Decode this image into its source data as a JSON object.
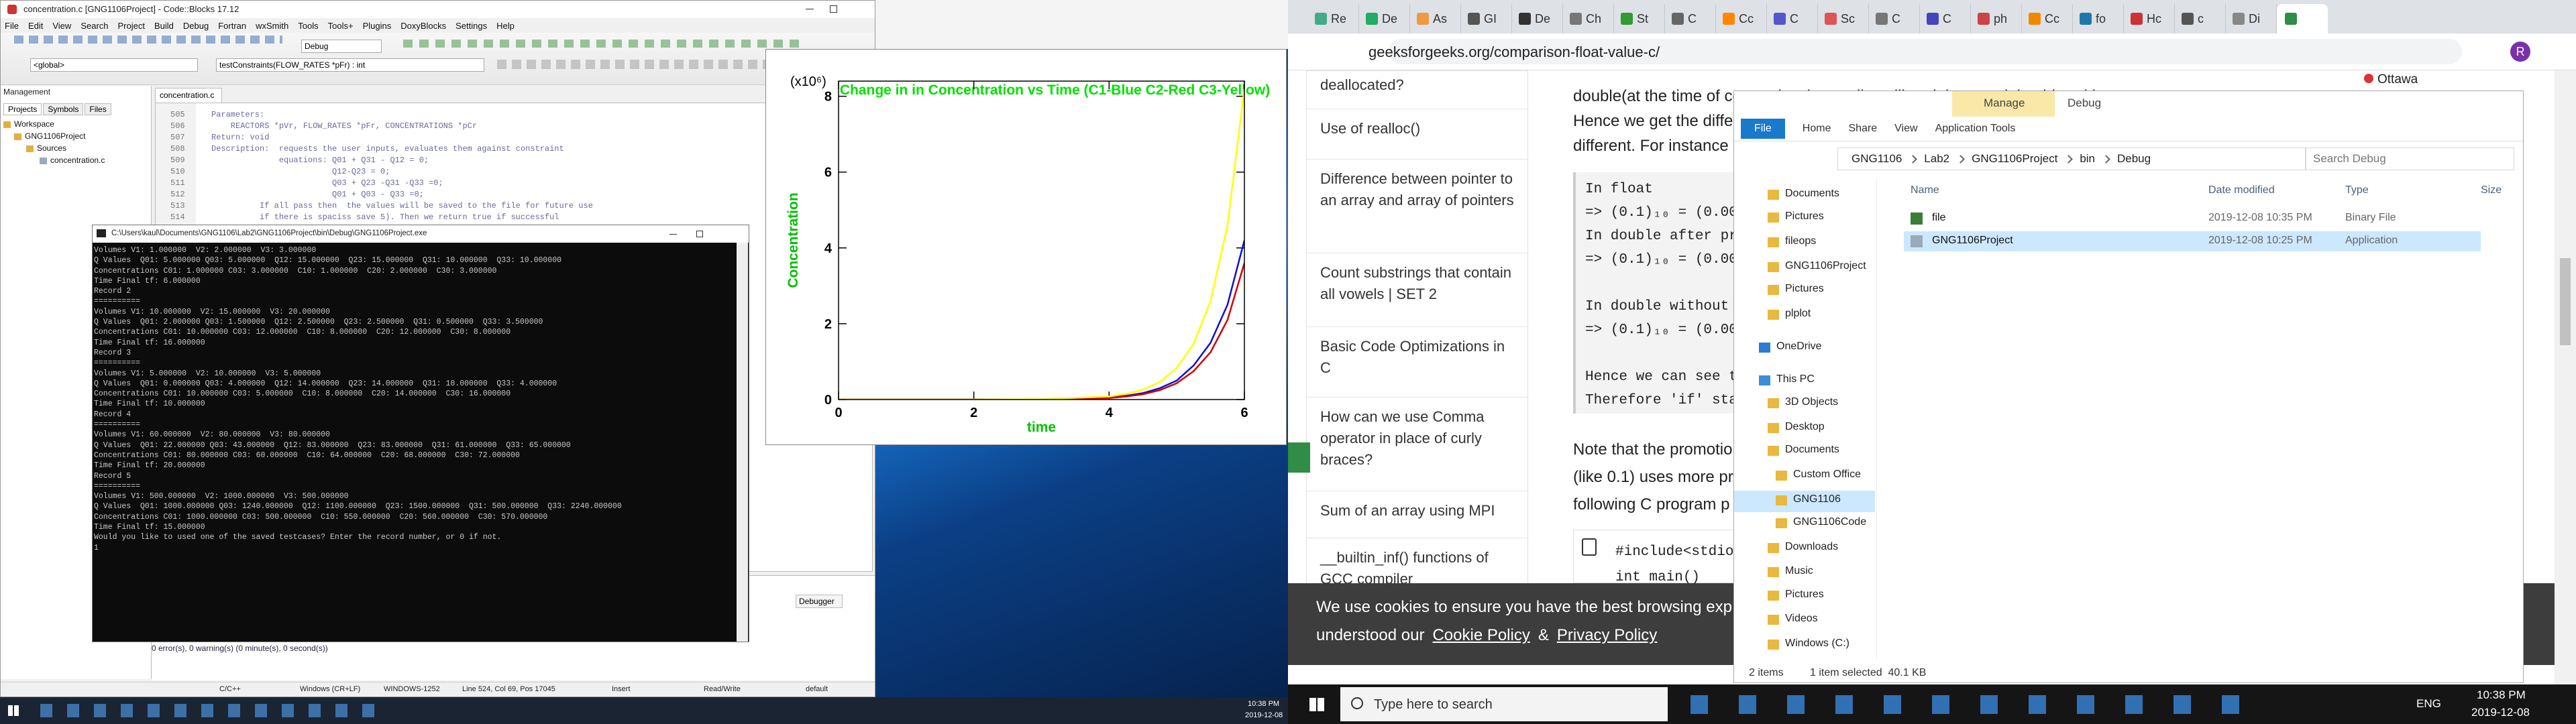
{
  "codeblocks": {
    "title": "concentration.c [GNG1106Project] - Code::Blocks 17.12",
    "menu": [
      "File",
      "Edit",
      "View",
      "Search",
      "Project",
      "Build",
      "Debug",
      "Fortran",
      "wxSmith",
      "Tools",
      "Tools+",
      "Plugins",
      "DoxyBlocks",
      "Settings",
      "Help"
    ],
    "build_target": "Debug",
    "scope": "<global>",
    "function": "testConstraints(FLOW_RATES *pFr) : int",
    "management": {
      "title": "Management",
      "tabs": [
        "Projects",
        "Symbols",
        "Files"
      ],
      "tree": [
        "Workspace",
        "GNG1106Project",
        "Sources",
        "concentration.c"
      ]
    },
    "editor_tab": "concentration.c",
    "line_numbers": [
      505,
      506,
      507,
      508,
      509,
      510,
      511,
      512,
      513,
      514
    ],
    "code": [
      "Parameters:",
      "    REACTORS *pVr, FLOW_RATES *pFr, CONCENTRATIONS *pCr",
      "Return: void",
      "Description:  requests the user inputs, evaluates them against constraint",
      "              equations: Q01 + Q31 - Q12 = 0;",
      "                         Q12-Q23 = 0;",
      "                         Q03 + Q23 -Q31 -Q33 =0;",
      "                         Q01 + Q03 - Q33 =0;",
      "          If all pass then  the values will be saved to the file for future use",
      "          if there is spaciss save 5). Then we return true if successful"
    ],
    "logs": {
      "tab": "Debugger",
      "message": "0 error(s), 0 warning(s) (0 minute(s), 0 second(s))"
    },
    "status": [
      "C/C++",
      "Windows (CR+LF)",
      "WINDOWS-1252",
      "Line 524, Col 69, Pos 17045",
      "Insert",
      "Read/Write",
      "default"
    ]
  },
  "console": {
    "title": "C:\\Users\\kaul\\Documents\\GNG1106\\Lab2\\GNG1106Project\\bin\\Debug\\GNG1106Project.exe",
    "lines": [
      "Volumes V1: 1.000000  V2: 2.000000  V3: 3.000000",
      "Q Values  Q01: 5.000000 Q03: 5.000000  Q12: 15.000000  Q23: 15.000000  Q31: 10.000000  Q33: 10.000000",
      "Concentrations C01: 1.000000 C03: 3.000000  C10: 1.000000  C20: 2.000000  C30: 3.000000",
      "Time Final tf: 6.000000",
      "Record 2",
      "==========",
      "Volumes V1: 10.000000  V2: 15.000000  V3: 20.000000",
      "Q Values  Q01: 2.000000 Q03: 1.500000  Q12: 2.500000  Q23: 2.500000  Q31: 0.500000  Q33: 3.500000",
      "Concentrations C01: 10.000000 C03: 12.000000  C10: 8.000000  C20: 12.000000  C30: 8.000000",
      "Time Final tf: 16.000000",
      "Record 3",
      "==========",
      "Volumes V1: 5.000000  V2: 10.000000  V3: 5.000000",
      "Q Values  Q01: 0.000000 Q03: 4.000000  Q12: 14.000000  Q23: 14.000000  Q31: 10.000000  Q33: 4.000000",
      "Concentrations C01: 10.000000 C03: 5.000000  C10: 8.000000  C20: 14.000000  C30: 16.000000",
      "Time Final tf: 10.000000",
      "Record 4",
      "==========",
      "Volumes V1: 60.000000  V2: 80.000000  V3: 80.000000",
      "Q Values  Q01: 22.000000 Q03: 43.000000  Q12: 83.000000  Q23: 83.000000  Q31: 61.000000  Q33: 65.000000",
      "Concentrations C01: 80.000000 C03: 60.000000  C10: 64.000000  C20: 68.000000  C30: 72.000000",
      "Time Final tf: 20.000000",
      "Record 5",
      "==========",
      "Volumes V1: 500.000000  V2: 1000.000000  V3: 500.000000",
      "Q Values  Q01: 1000.000000 Q03: 1240.000000  Q12: 1100.000000  Q23: 1500.000000  Q31: 500.000000  Q33: 2240.000000",
      "Concentrations C01: 1000.000000 C03: 500.000000  C10: 550.000000  C20: 560.000000  C30: 570.000000",
      "Time Final tf: 15.000000",
      "Would you like to used one of the saved testcases? Enter the record number, or 0 if not.",
      "1"
    ]
  },
  "plot": {
    "chart_data": {
      "type": "line",
      "title": "Change in in Concentration vs Time (C1-Blue C2-Red C3-Yellow)",
      "multiplier": "(x10⁶)",
      "x_label": "time",
      "y_label": "Concentration",
      "x": [
        0,
        2,
        3,
        4,
        4.25,
        4.5,
        4.75,
        5,
        5.25,
        5.5,
        5.75,
        6
      ],
      "series": [
        {
          "color": "#1010d0",
          "values": [
            0,
            0,
            0,
            0.05,
            0.1,
            0.17,
            0.3,
            0.5,
            0.9,
            1.5,
            2.5,
            4.2
          ]
        },
        {
          "color": "#d00000",
          "values": [
            0,
            0,
            0,
            0.04,
            0.08,
            0.14,
            0.25,
            0.43,
            0.75,
            1.25,
            2.1,
            3.6
          ]
        },
        {
          "color": "#ffff00",
          "values": [
            0,
            0,
            0.01,
            0.08,
            0.15,
            0.26,
            0.46,
            0.83,
            1.47,
            2.6,
            4.6,
            8.2
          ]
        }
      ],
      "xlim": [
        0,
        6
      ],
      "xticks": [
        0,
        2,
        4,
        6
      ],
      "ylim": [
        0,
        8.4
      ],
      "yticks": [
        0,
        2,
        4,
        6,
        8
      ]
    }
  },
  "taskbar_left": {
    "time": "10:38 PM",
    "date": "2019-12-08"
  },
  "chrome": {
    "tabs": [
      "Re",
      "De",
      "As",
      "GI",
      "De",
      "Ch",
      "St",
      "C",
      "Cc",
      "C",
      "Sc",
      "C",
      "C",
      "ph",
      "Cc",
      "fo",
      "Hc",
      "c",
      "Di"
    ],
    "url": "geeksforgeeks.org/comparison-float-value-c/",
    "profile": "R",
    "sidebar": [
      "deallocated?",
      "Use of realloc()",
      "Difference between pointer to an array and array of pointers",
      "Count substrings that contain all vowels | SET 2",
      "Basic Code Optimizations in C",
      "How can we use Comma operator in place of curly braces?",
      "Sum of an array using MPI",
      "__builtin_inf() functions of GCC compiler"
    ],
    "article_top": [
      "double(at the time of comparison) compiler will pad the remaining bits with zeroes.",
      "Hence we get the diffe",
      "different. For instance"
    ],
    "code_box": [
      "In float",
      "=> (0.1)₁₀ = (0.000",
      "In double after pr",
      "=> (0.1)₁₀ = (0.000",
      "In double without",
      "=> (0.1)₁₀ = (0.000",
      "Hence we can see t",
      "Therefore 'if' sta"
    ],
    "article_bottom": [
      "Note that the promotio",
      "(like 0.1) uses more pr",
      "following C program p"
    ],
    "snippet": [
      "#include<stdio",
      "int main()"
    ],
    "cookie": {
      "text": "We use cookies to ensure you have the best browsing exp",
      "text2": "understood our",
      "link1": "Cookie Policy",
      "amp": "&",
      "link2": "Privacy Policy"
    },
    "location": "Ottawa"
  },
  "explorer": {
    "manage": "Manage",
    "title": "Debug",
    "ribbon": [
      "File",
      "Home",
      "Share",
      "View",
      "Application Tools"
    ],
    "path": [
      "GNG1106",
      "Lab2",
      "GNG1106Project",
      "bin",
      "Debug"
    ],
    "search": "Search Debug",
    "columns": [
      "Name",
      "Date modified",
      "Type",
      "Size"
    ],
    "files": [
      [
        "file",
        "2019-12-08 10:35 PM",
        "Binary File"
      ],
      [
        "GNG1106Project",
        "2019-12-08 10:25 PM",
        "Application"
      ]
    ],
    "nav": [
      "Documents",
      "Pictures",
      "fileops",
      "GNG1106Project",
      "Pictures",
      "plplot",
      "OneDrive",
      "This PC",
      "3D Objects",
      "Desktop",
      "Documents",
      "Custom Office",
      "GNG1106",
      "GNG1106Code",
      "Downloads",
      "Music",
      "Pictures",
      "Videos",
      "Windows (C:)"
    ],
    "status": [
      "2 items",
      "1 item selected  40.1 KB"
    ]
  },
  "taskbar_right": {
    "search": "Type here to search",
    "lang": "ENG",
    "time": "10:38 PM",
    "date": "2019-12-08"
  }
}
